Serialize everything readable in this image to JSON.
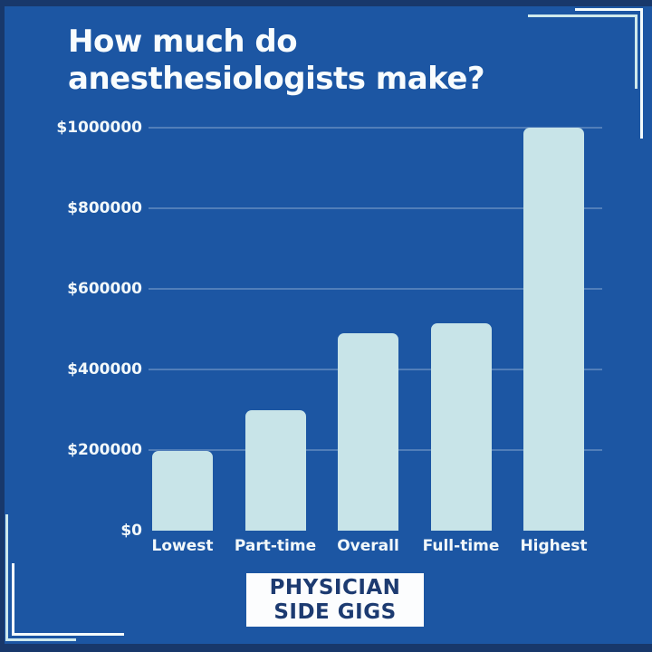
{
  "title": {
    "line1": "How much do",
    "line2": "anesthesiologists make?"
  },
  "badge": {
    "line1": "PHYSICIAN",
    "line2": "SIDE GIGS"
  },
  "colors": {
    "background": "#1C56A3",
    "frame": "#18386B",
    "bar": "#C8E4E8",
    "title_text": "#F8FCFD",
    "axis_text": "#F2F8FA",
    "badge_background": "#FCFDFE",
    "badge_text": "#1D3B71",
    "gridline": "rgba(235,245,250,0.26)"
  },
  "chart_data": {
    "type": "bar",
    "title": "How much do anesthesiologists make?",
    "categories": [
      "Lowest",
      "Part-time",
      "Overall",
      "Full-time",
      "Highest"
    ],
    "values": [
      198000,
      300000,
      490000,
      515000,
      1000000
    ],
    "xlabel": "",
    "ylabel": "",
    "y_tick_labels": [
      "$1000000",
      "$800000",
      "$600000",
      "$400000",
      "$200000",
      "$0"
    ],
    "y_tick_values": [
      1000000,
      800000,
      600000,
      400000,
      200000,
      0
    ],
    "ylim": [
      0,
      1000000
    ],
    "grid": true,
    "legend": false,
    "bar_color": "#C8E4E8",
    "background_color": "#1C56A3"
  }
}
